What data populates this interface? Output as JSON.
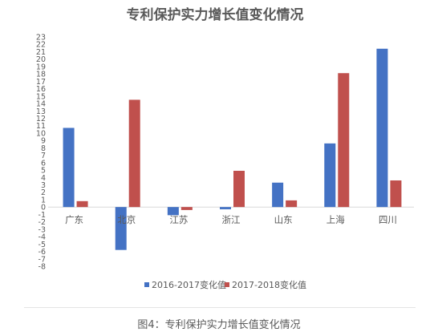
{
  "caption": "图4：专利保护实力增长值变化情况",
  "chart_data": {
    "type": "bar",
    "title": "专利保护实力增长值变化情况",
    "categories": [
      "广东",
      "北京",
      "江苏",
      "浙江",
      "山东",
      "上海",
      "四川"
    ],
    "series": [
      {
        "name": "2016-2017变化值",
        "color": "#4472c4",
        "values": [
          10.7,
          -5.8,
          -1.1,
          -0.3,
          3.3,
          8.6,
          21.4
        ]
      },
      {
        "name": "2017-2018变化值",
        "color": "#c0504d",
        "values": [
          0.8,
          14.5,
          -0.4,
          4.9,
          0.9,
          18.1,
          3.6
        ]
      }
    ],
    "ylim": [
      -8,
      23
    ],
    "yticks": [
      23,
      22,
      21,
      20,
      19,
      18,
      17,
      16,
      15,
      14,
      13,
      12,
      11,
      10,
      9,
      8,
      7,
      6,
      5,
      4,
      3,
      2,
      1,
      0,
      -1,
      -2,
      -3,
      -4,
      -5,
      -6,
      -7,
      -8
    ],
    "xlabel": "",
    "ylabel": "",
    "grid": false,
    "legend": "bottom"
  }
}
